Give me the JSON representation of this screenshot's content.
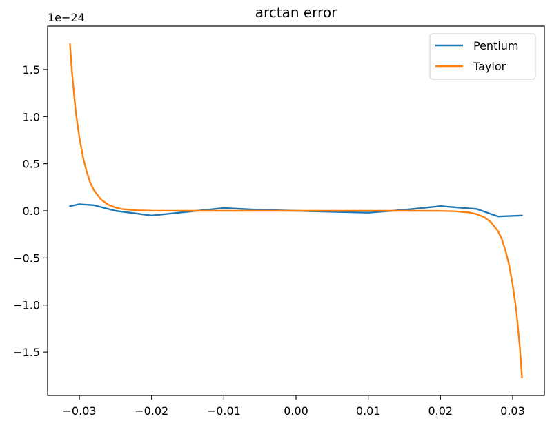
{
  "chart_data": {
    "type": "line",
    "title": "arctan error",
    "xlabel": "",
    "ylabel": "",
    "y_offset_text": "1e−24",
    "xlim": [
      -0.0344,
      0.0344
    ],
    "ylim": [
      -1.96,
      1.96
    ],
    "x_ticks": [
      -0.03,
      -0.02,
      -0.01,
      0.0,
      0.01,
      0.02,
      0.03
    ],
    "x_tick_labels": [
      "−0.03",
      "−0.02",
      "−0.01",
      "0.00",
      "0.01",
      "0.02",
      "0.03"
    ],
    "y_ticks": [
      -1.5,
      -1.0,
      -0.5,
      0.0,
      0.5,
      1.0,
      1.5
    ],
    "y_tick_labels": [
      "−1.5",
      "−1.0",
      "−0.5",
      "0.0",
      "0.5",
      "1.0",
      "1.5"
    ],
    "grid": false,
    "legend_position": "top-right",
    "series": [
      {
        "name": "Pentium",
        "color": "#1f77b4",
        "x": [
          -0.0313,
          -0.03,
          -0.028,
          -0.025,
          -0.02,
          -0.015,
          -0.01,
          -0.005,
          0.0,
          0.005,
          0.01,
          0.015,
          0.02,
          0.025,
          0.028,
          0.0313
        ],
        "values": [
          0.05,
          0.07,
          0.06,
          0.0,
          -0.05,
          -0.01,
          0.03,
          0.01,
          0.0,
          -0.01,
          -0.02,
          0.01,
          0.05,
          0.02,
          -0.06,
          -0.05
        ]
      },
      {
        "name": "Taylor",
        "color": "#ff7f0e",
        "x": [
          -0.0313,
          -0.031,
          -0.0305,
          -0.03,
          -0.0295,
          -0.029,
          -0.0285,
          -0.028,
          -0.027,
          -0.026,
          -0.025,
          -0.024,
          -0.022,
          -0.02,
          -0.015,
          0.0,
          0.015,
          0.02,
          0.022,
          0.024,
          0.025,
          0.026,
          0.027,
          0.028,
          0.0285,
          0.029,
          0.0295,
          0.03,
          0.0305,
          0.031,
          0.0313
        ],
        "values": [
          1.77,
          1.45,
          1.05,
          0.78,
          0.57,
          0.42,
          0.3,
          0.22,
          0.12,
          0.065,
          0.035,
          0.018,
          0.005,
          0.001,
          0.0,
          0.0,
          0.0,
          -0.001,
          -0.005,
          -0.018,
          -0.035,
          -0.065,
          -0.12,
          -0.22,
          -0.3,
          -0.42,
          -0.57,
          -0.78,
          -1.05,
          -1.45,
          -1.77
        ]
      }
    ]
  }
}
